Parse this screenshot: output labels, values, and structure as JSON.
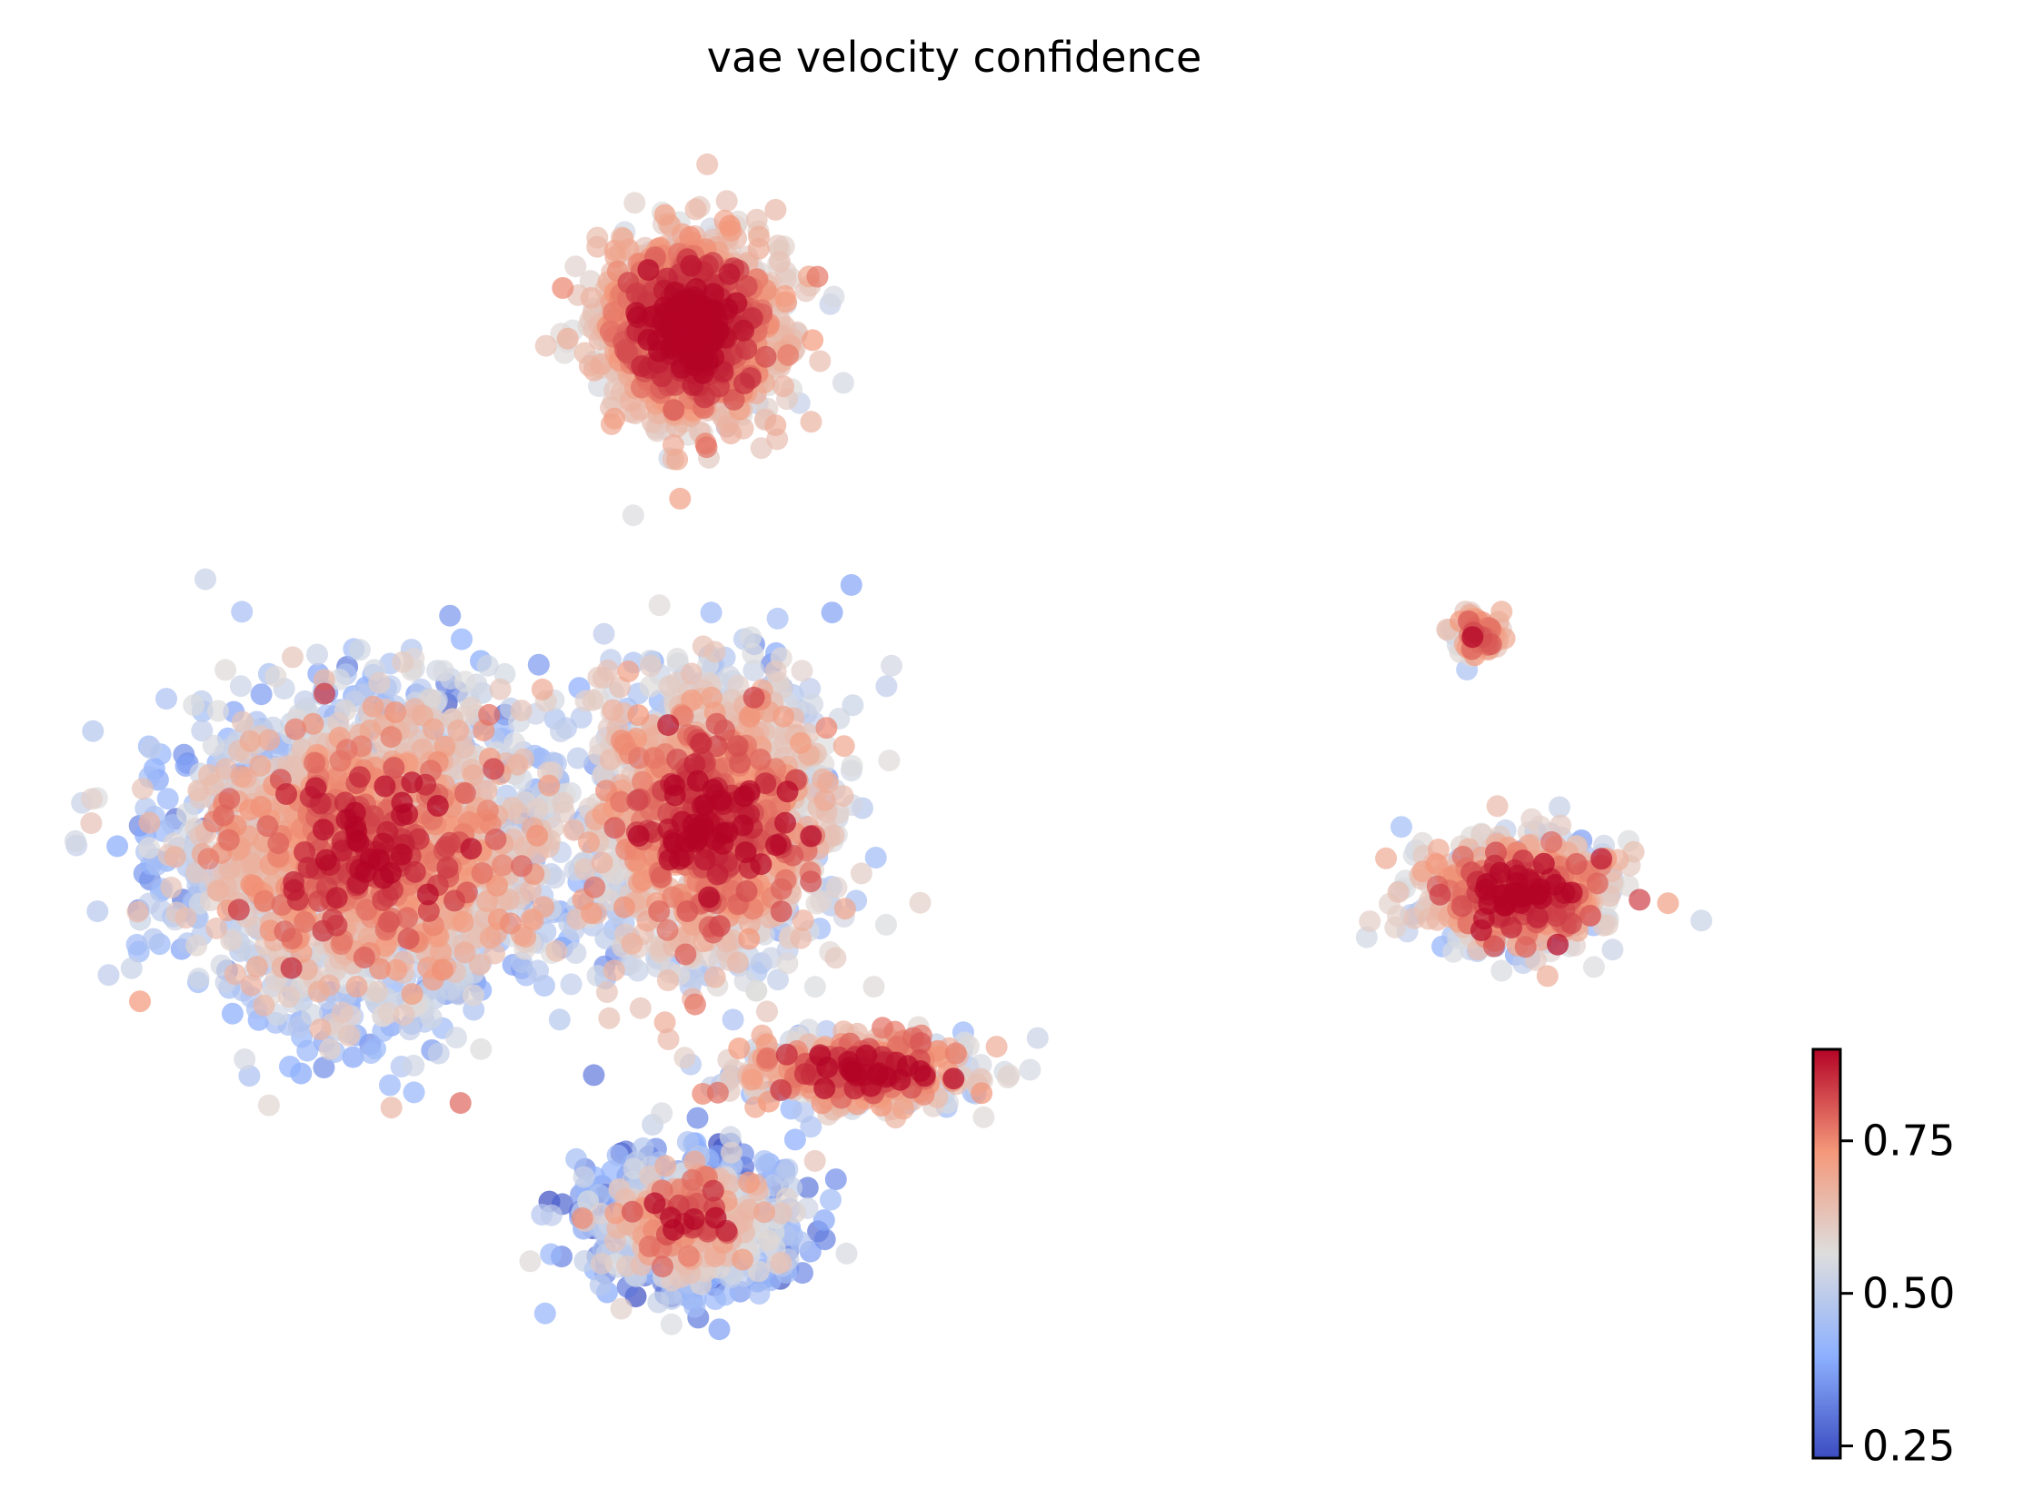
{
  "chart_data": {
    "type": "scatter",
    "title": "vae velocity confidence",
    "xlabel": "",
    "ylabel": "",
    "grid": false,
    "axes_visible": false,
    "color_variable": "velocity confidence",
    "colormap": "coolwarm",
    "colorbar": {
      "vmin": 0.23,
      "vmax": 0.9,
      "ticks": [
        0.25,
        0.5,
        0.75
      ],
      "tick_labels": [
        "0.25",
        "0.50",
        "0.75"
      ],
      "placement": "bottom-right"
    },
    "clusters": [
      {
        "name": "",
        "x": 7.5,
        "y": 13.5,
        "sx": 1.0,
        "sy": 1.0,
        "n": 1500,
        "mean": 0.88,
        "spread": 0.1
      },
      {
        "name": "",
        "x": 3.5,
        "y": 7.0,
        "sx": 2.2,
        "sy": 1.8,
        "n": 2200,
        "mean": 0.74,
        "spread": 0.15
      },
      {
        "name": "",
        "x": 7.8,
        "y": 7.4,
        "sx": 1.4,
        "sy": 1.6,
        "n": 1400,
        "mean": 0.8,
        "spread": 0.13
      },
      {
        "name": "",
        "x": 7.5,
        "y": 2.4,
        "sx": 1.2,
        "sy": 0.8,
        "n": 700,
        "mean": 0.66,
        "spread": 0.18
      },
      {
        "name": "",
        "x": 9.6,
        "y": 4.3,
        "sx": 1.4,
        "sy": 0.4,
        "n": 450,
        "mean": 0.82,
        "spread": 0.14
      },
      {
        "name": "",
        "x": 17.9,
        "y": 6.5,
        "sx": 1.1,
        "sy": 0.6,
        "n": 650,
        "mean": 0.82,
        "spread": 0.15
      },
      {
        "name": "",
        "x": 17.4,
        "y": 9.7,
        "sx": 0.25,
        "sy": 0.25,
        "n": 70,
        "mean": 0.86,
        "spread": 0.1
      }
    ]
  }
}
